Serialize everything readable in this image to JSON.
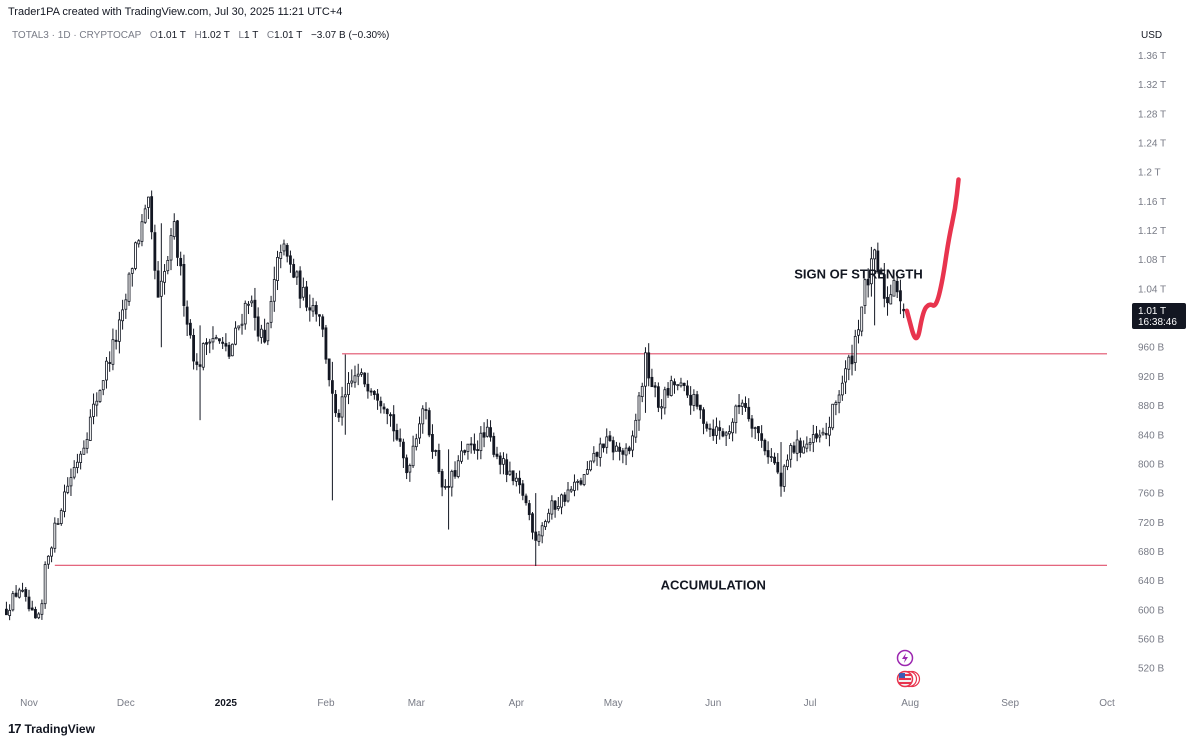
{
  "header": {
    "author_line": "Trader1PA created with TradingView.com, Jul 30, 2025 11:21 UTC+4"
  },
  "legend": {
    "symbol": "TOTAL3 · 1D · CRYPTOCAP",
    "o_label": "O",
    "o_value": "1.01 T",
    "h_label": "H",
    "h_value": "1.02 T",
    "l_label": "L",
    "l_value": "1 T",
    "c_label": "C",
    "c_value": "1.01 T",
    "change": "−3.07 B (−0.30%)"
  },
  "currency": "USD",
  "price_tag": {
    "value": "1.01 T",
    "countdown": "16:38:46",
    "price": 1.01
  },
  "footer": {
    "brand": "TradingView",
    "logo_glyph": "17"
  },
  "colors": {
    "candle": "#131722",
    "level_line": "#e0516b",
    "projection": "#e8344e",
    "price_tag_bg": "#131722"
  },
  "icons": [
    "lightning-event-icon",
    "us-flag-event-icon"
  ],
  "chart_data": {
    "type": "candlestick",
    "y_unit": "T (trillion USD)",
    "ylim": [
      0.49,
      1.395
    ],
    "y_ticks": [
      {
        "v": 1.36,
        "label": "1.36 T"
      },
      {
        "v": 1.32,
        "label": "1.32 T"
      },
      {
        "v": 1.28,
        "label": "1.28 T"
      },
      {
        "v": 1.24,
        "label": "1.24 T"
      },
      {
        "v": 1.2,
        "label": "1.2 T"
      },
      {
        "v": 1.16,
        "label": "1.16 T"
      },
      {
        "v": 1.12,
        "label": "1.12 T"
      },
      {
        "v": 1.08,
        "label": "1.08 T"
      },
      {
        "v": 1.04,
        "label": "1.04 T"
      },
      {
        "v": 0.96,
        "label": "960 B"
      },
      {
        "v": 0.92,
        "label": "920 B"
      },
      {
        "v": 0.88,
        "label": "880 B"
      },
      {
        "v": 0.84,
        "label": "840 B"
      },
      {
        "v": 0.8,
        "label": "800 B"
      },
      {
        "v": 0.76,
        "label": "760 B"
      },
      {
        "v": 0.72,
        "label": "720 B"
      },
      {
        "v": 0.68,
        "label": "680 B"
      },
      {
        "v": 0.64,
        "label": "640 B"
      },
      {
        "v": 0.6,
        "label": "600 B"
      },
      {
        "v": 0.56,
        "label": "560 B"
      },
      {
        "v": 0.52,
        "label": "520 B"
      }
    ],
    "x_ticks": [
      {
        "date": "2024-11-01",
        "label": "Nov",
        "bold": false
      },
      {
        "date": "2024-12-01",
        "label": "Dec",
        "bold": false
      },
      {
        "date": "2025-01-01",
        "label": "2025",
        "bold": true
      },
      {
        "date": "2025-02-01",
        "label": "Feb",
        "bold": false
      },
      {
        "date": "2025-03-01",
        "label": "Mar",
        "bold": false
      },
      {
        "date": "2025-04-01",
        "label": "Apr",
        "bold": false
      },
      {
        "date": "2025-05-01",
        "label": "May",
        "bold": false
      },
      {
        "date": "2025-06-01",
        "label": "Jun",
        "bold": false
      },
      {
        "date": "2025-07-01",
        "label": "Jul",
        "bold": false
      },
      {
        "date": "2025-08-01",
        "label": "Aug",
        "bold": false
      },
      {
        "date": "2025-09-01",
        "label": "Sep",
        "bold": false
      },
      {
        "date": "2025-10-01",
        "label": "Oct",
        "bold": false
      }
    ],
    "anchors": [
      [
        "2024-10-25",
        0.6
      ],
      [
        "2024-10-29",
        0.63
      ],
      [
        "2024-11-03",
        0.582
      ],
      [
        "2024-11-05",
        0.6
      ],
      [
        "2024-11-06",
        0.66
      ],
      [
        "2024-11-12",
        0.76
      ],
      [
        "2024-11-18",
        0.83
      ],
      [
        "2024-11-24",
        0.92
      ],
      [
        "2024-11-30",
        1.0
      ],
      [
        "2024-12-04",
        1.1
      ],
      [
        "2024-12-08",
        1.15
      ],
      [
        "2024-12-11",
        1.02
      ],
      [
        "2024-12-16",
        1.12
      ],
      [
        "2024-12-20",
        1.0
      ],
      [
        "2024-12-23",
        0.93
      ],
      [
        "2024-12-27",
        0.98
      ],
      [
        "2025-01-02",
        0.95
      ],
      [
        "2025-01-08",
        1.03
      ],
      [
        "2025-01-13",
        0.96
      ],
      [
        "2025-01-18",
        1.1
      ],
      [
        "2025-01-25",
        1.03
      ],
      [
        "2025-01-30",
        1.01
      ],
      [
        "2025-02-01",
        0.95
      ],
      [
        "2025-02-04",
        0.86
      ],
      [
        "2025-02-10",
        0.92
      ],
      [
        "2025-02-15",
        0.91
      ],
      [
        "2025-02-20",
        0.88
      ],
      [
        "2025-02-26",
        0.79
      ],
      [
        "2025-03-03",
        0.88
      ],
      [
        "2025-03-10",
        0.76
      ],
      [
        "2025-03-15",
        0.81
      ],
      [
        "2025-03-23",
        0.84
      ],
      [
        "2025-03-30",
        0.78
      ],
      [
        "2025-04-03",
        0.76
      ],
      [
        "2025-04-07",
        0.7
      ],
      [
        "2025-04-12",
        0.74
      ],
      [
        "2025-04-22",
        0.78
      ],
      [
        "2025-04-28",
        0.83
      ],
      [
        "2025-05-06",
        0.81
      ],
      [
        "2025-05-11",
        0.94
      ],
      [
        "2025-05-15",
        0.88
      ],
      [
        "2025-05-20",
        0.91
      ],
      [
        "2025-05-25",
        0.89
      ],
      [
        "2025-05-31",
        0.85
      ],
      [
        "2025-06-05",
        0.84
      ],
      [
        "2025-06-10",
        0.89
      ],
      [
        "2025-06-15",
        0.84
      ],
      [
        "2025-06-20",
        0.8
      ],
      [
        "2025-06-22",
        0.77
      ],
      [
        "2025-06-25",
        0.82
      ],
      [
        "2025-07-02",
        0.83
      ],
      [
        "2025-07-06",
        0.84
      ],
      [
        "2025-07-10",
        0.9
      ],
      [
        "2025-07-14",
        0.95
      ],
      [
        "2025-07-18",
        1.04
      ],
      [
        "2025-07-21",
        1.08
      ],
      [
        "2025-07-25",
        1.02
      ],
      [
        "2025-07-27",
        1.06
      ],
      [
        "2025-07-30",
        1.01
      ]
    ],
    "spikes": {
      "2024-12-12": [
        0.96,
        1.13
      ],
      "2024-12-24": [
        0.86,
        0.99
      ],
      "2025-02-03": [
        0.75,
        0.94
      ],
      "2025-02-07": [
        0.84,
        0.95
      ],
      "2025-03-11": [
        0.71,
        0.82
      ],
      "2025-04-07": [
        0.66,
        0.76
      ],
      "2025-05-11": [
        0.87,
        0.96
      ],
      "2025-06-22": [
        0.755,
        0.83
      ],
      "2025-07-21": [
        0.99,
        1.095
      ]
    },
    "levels": [
      {
        "price": 0.951,
        "from": "2025-02-06",
        "to": "2025-10-01"
      },
      {
        "price": 0.661,
        "from": "2024-11-09",
        "to": "2025-10-01"
      }
    ],
    "projection_path": [
      [
        "2025-07-31",
        1.01
      ],
      [
        "2025-08-03",
        0.96
      ],
      [
        "2025-08-05",
        1.01
      ],
      [
        "2025-08-07",
        1.02
      ],
      [
        "2025-08-09",
        1.015
      ],
      [
        "2025-08-11",
        1.05
      ],
      [
        "2025-08-13",
        1.11
      ],
      [
        "2025-08-15",
        1.15
      ],
      [
        "2025-08-16",
        1.19
      ]
    ],
    "annotations": [
      {
        "text": "SIGN OF STRENGTH",
        "date": "2025-07-16",
        "price": 1.06
      },
      {
        "text": "ACCUMULATION",
        "date": "2025-06-01",
        "price": 0.633
      }
    ]
  }
}
